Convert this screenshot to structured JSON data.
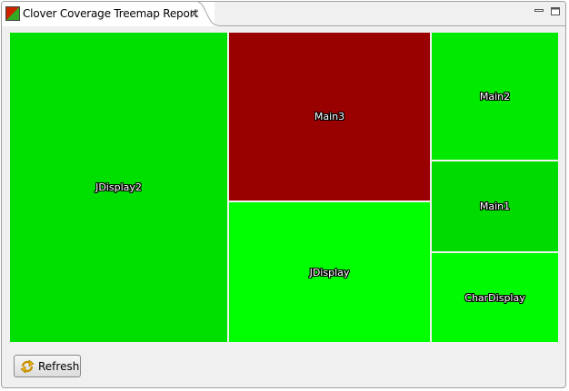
{
  "view": {
    "title": "Clover Coverage Treemap Report",
    "app_icon": "clover-icon",
    "close_icon": "close-x-icon",
    "minimize_icon": "minimize-icon",
    "maximize_icon": "maximize-icon"
  },
  "treemap": {
    "cells": [
      {
        "label": "JDisplay2",
        "color": "#00e000"
      },
      {
        "label": "Main3",
        "color": "#990000"
      },
      {
        "label": "JDisplay",
        "color": "#00ff00"
      },
      {
        "label": "Main2",
        "color": "#00ea00"
      },
      {
        "label": "Main1",
        "color": "#00dc00"
      },
      {
        "label": "CharDisplay",
        "color": "#00fa00"
      }
    ]
  },
  "footer": {
    "refresh_label": "Refresh",
    "refresh_icon": "refresh-icon"
  }
}
